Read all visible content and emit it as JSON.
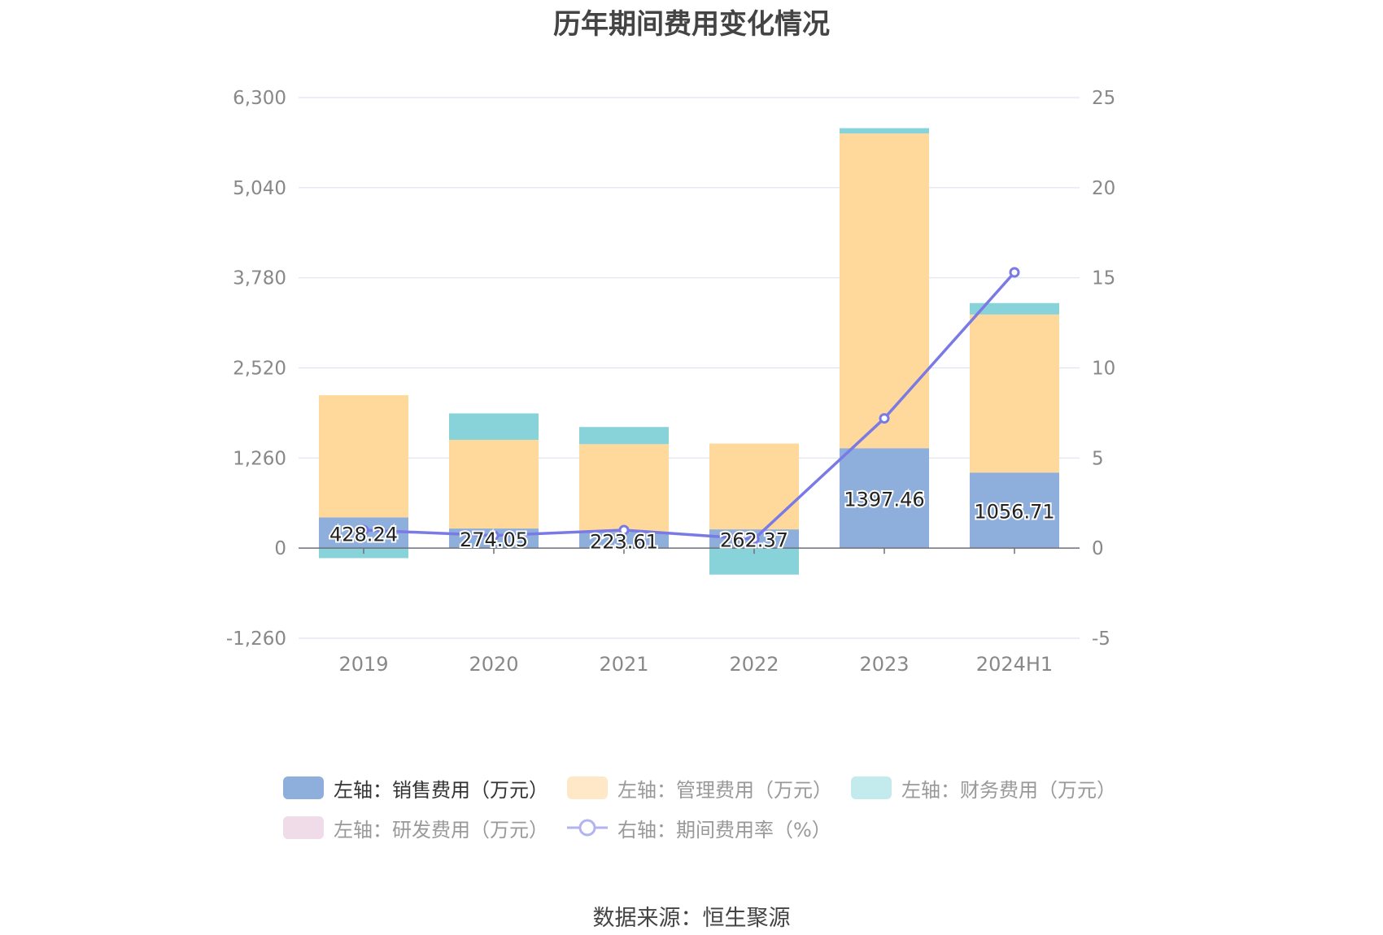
{
  "title": "历年期间费用变化情况",
  "source": "数据来源：恒生聚源",
  "colors": {
    "sales": "#8eaedc",
    "admin": "#fed99b",
    "finance": "#87d3d9",
    "rd": "#f0dbe8",
    "rate": "#7a7ae6",
    "grid": "#dfe3ee",
    "axis_text": "#888888"
  },
  "legend": [
    {
      "label": "左轴：销售费用（万元）",
      "color": "#8eaedc",
      "icon": "swatch",
      "active": true
    },
    {
      "label": "左轴：管理费用（万元）",
      "color": "#fee8c8",
      "icon": "swatch",
      "active": false
    },
    {
      "label": "左轴：财务费用（万元）",
      "color": "#c3eaec",
      "icon": "swatch",
      "active": false
    },
    {
      "label": "左轴：研发费用（万元）",
      "color": "#f0dbe8",
      "icon": "swatch",
      "active": false
    },
    {
      "label": "右轴：期间费用率（%）",
      "color": "#b3b3f0",
      "icon": "line-circle",
      "active": false
    }
  ],
  "chart_data": {
    "type": "bar",
    "stacked": true,
    "title": "历年期间费用变化情况",
    "categories": [
      "2019",
      "2020",
      "2021",
      "2022",
      "2023",
      "2024H1"
    ],
    "y_left": {
      "ticks": [
        "6,300",
        "5,040",
        "3,780",
        "2,520",
        "1,260",
        "0",
        "-1,260"
      ],
      "ylim": [
        -1260,
        6300
      ]
    },
    "y_right": {
      "ticks": [
        "25",
        "20",
        "15",
        "10",
        "5",
        "0",
        "-5"
      ],
      "ylim": [
        -5,
        25
      ]
    },
    "series": [
      {
        "name": "左轴：销售费用（万元）",
        "axis": "left",
        "values": [
          428.24,
          274.05,
          223.61,
          262.37,
          1397.46,
          1056.71
        ],
        "labels": [
          "428.24",
          "274.05",
          "223.61",
          "262.37",
          "1397.46",
          "1056.71"
        ]
      },
      {
        "name": "左轴：管理费用（万元）",
        "axis": "left",
        "values": [
          1710,
          1240,
          1230,
          1200,
          4400,
          2210
        ]
      },
      {
        "name": "左轴：财务费用（万元）",
        "axis": "left",
        "values": [
          -140,
          370,
          240,
          -370,
          75,
          160
        ]
      },
      {
        "name": "左轴：研发费用（万元）",
        "axis": "left",
        "values": [
          0,
          0,
          0,
          0,
          0,
          0
        ]
      },
      {
        "name": "右轴：期间费用率（%）",
        "axis": "right",
        "type": "line",
        "values": [
          1.0,
          0.7,
          1.0,
          0.5,
          7.2,
          15.3
        ]
      }
    ],
    "grid": true,
    "legend_position": "bottom"
  }
}
